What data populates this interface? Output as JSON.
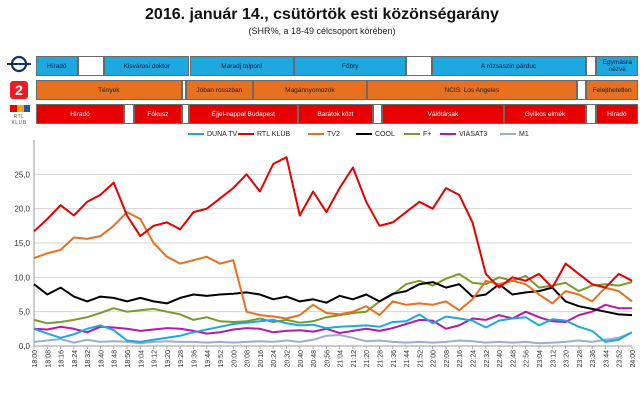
{
  "header": {
    "title": "2016. január 14., csütörtök esti közönségarány",
    "subtitle": "(SHR%, a 18-49 célcsoport körében)"
  },
  "channels": {
    "duna_logo": "DUNA TV logo",
    "tv2_logo": "TV2 logo",
    "rtl_logo": "RTL KLUB logo",
    "rtl_logo_text": "RTL KLUB"
  },
  "schedule": {
    "duna": [
      {
        "label": "Híradó",
        "start": 0,
        "end": 6.9
      },
      {
        "label": "",
        "start": 6.9,
        "end": 11.3,
        "gap": true
      },
      {
        "label": "Kisvárosi doktor",
        "start": 11.3,
        "end": 25.5
      },
      {
        "label": "Maradj talpon!",
        "start": 25.5,
        "end": 42.9
      },
      {
        "label": "Főbry",
        "start": 42.9,
        "end": 61.5
      },
      {
        "label": "",
        "start": 61.5,
        "end": 65.7,
        "gap": true
      },
      {
        "label": "A rózsaszín párduc",
        "start": 65.7,
        "end": 91.3
      },
      {
        "label": "",
        "start": 91.3,
        "end": 93.1,
        "gap": true
      },
      {
        "label": "Egymásra nézve",
        "start": 93.1,
        "end": 100
      }
    ],
    "tv2": [
      {
        "label": "Tények",
        "start": 0,
        "end": 24.2
      },
      {
        "label": "",
        "start": 24.2,
        "end": 24.9,
        "gap": true
      },
      {
        "label": "Jóban rosszban",
        "start": 24.9,
        "end": 36.0
      },
      {
        "label": "Magánnyomozók",
        "start": 36.0,
        "end": 55.0
      },
      {
        "label": "NCIS: Los Angeles",
        "start": 55.0,
        "end": 89.8
      },
      {
        "label": "",
        "start": 89.8,
        "end": 91.4,
        "gap": true
      },
      {
        "label": "Felejthetetlen",
        "start": 91.4,
        "end": 100
      }
    ],
    "rtl": [
      {
        "label": "Híradó",
        "start": 0,
        "end": 14.6
      },
      {
        "label": "",
        "start": 14.6,
        "end": 16.3,
        "gap": true
      },
      {
        "label": "Fókusz",
        "start": 16.3,
        "end": 24.2
      },
      {
        "label": "",
        "start": 24.2,
        "end": 25.4,
        "gap": true
      },
      {
        "label": "Éjjel-nappal Budapest",
        "start": 25.4,
        "end": 43.5
      },
      {
        "label": "Barátok közt",
        "start": 43.5,
        "end": 56.0
      },
      {
        "label": "",
        "start": 56.0,
        "end": 57.5,
        "gap": true
      },
      {
        "label": "Válótársak",
        "start": 57.5,
        "end": 77.7
      },
      {
        "label": "Gyilkos elmék",
        "start": 77.7,
        "end": 91.4
      },
      {
        "label": "",
        "start": 91.4,
        "end": 93.0,
        "gap": true
      },
      {
        "label": "Híradó",
        "start": 93.0,
        "end": 100
      }
    ]
  },
  "chart_data": {
    "type": "line",
    "ylim": [
      0,
      30
    ],
    "yticks": [
      "0,0",
      "5,0",
      "10,0",
      "15,0",
      "20,0",
      "25,0"
    ],
    "legend_position": "top",
    "grid": "horizontal",
    "x": [
      "18:00",
      "18:08",
      "18:16",
      "18:24",
      "18:32",
      "18:40",
      "18:48",
      "18:56",
      "19:04",
      "19:12",
      "19:20",
      "19:28",
      "19:36",
      "19:44",
      "19:52",
      "20:00",
      "20:08",
      "20:16",
      "20:24",
      "20:32",
      "20:40",
      "20:48",
      "20:56",
      "21:04",
      "21:12",
      "21:20",
      "21:28",
      "21:36",
      "21:44",
      "21:52",
      "22:00",
      "22:08",
      "22:16",
      "22:24",
      "22:32",
      "22:40",
      "22:48",
      "22:56",
      "23:04",
      "23:12",
      "23:20",
      "23:28",
      "23:36",
      "23:44",
      "23:52",
      "24:00"
    ],
    "series": [
      {
        "name": "DUNA TV",
        "color": "#1ea8e0",
        "values": [
          2.5,
          1.8,
          1.2,
          1.7,
          2.5,
          3.0,
          2.3,
          0.8,
          0.6,
          0.9,
          1.2,
          1.5,
          2.0,
          2.4,
          2.8,
          3.2,
          3.4,
          3.6,
          3.8,
          3.3,
          3.0,
          3.1,
          2.6,
          2.8,
          2.9,
          3.0,
          2.8,
          3.5,
          3.6,
          4.6,
          3.3,
          4.3,
          4.0,
          3.7,
          2.7,
          3.7,
          4.0,
          4.2,
          3.0,
          3.9,
          3.7,
          2.8,
          2.2,
          0.6,
          0.9,
          2.0
        ]
      },
      {
        "name": "RTL KLUB",
        "color": "#e60000",
        "values": [
          16.7,
          18.5,
          20.5,
          19.0,
          21.0,
          22.0,
          23.8,
          19.0,
          16.0,
          17.5,
          18.0,
          17.0,
          19.5,
          20.0,
          21.5,
          23.0,
          25.0,
          22.5,
          26.5,
          27.5,
          19.0,
          22.5,
          19.5,
          23.0,
          26.0,
          21.0,
          17.5,
          18.0,
          19.5,
          21.0,
          20.0,
          23.0,
          22.0,
          18.0,
          10.5,
          8.5,
          10.0,
          9.5,
          10.5,
          8.5,
          12.0,
          10.5,
          9.0,
          8.5,
          10.5,
          9.5
        ]
      },
      {
        "name": "TV2",
        "color": "#e8711f",
        "values": [
          12.8,
          13.5,
          14.0,
          15.8,
          15.6,
          16.0,
          17.5,
          19.5,
          18.5,
          15.0,
          13.0,
          12.0,
          12.5,
          13.0,
          12.0,
          12.5,
          5.0,
          4.5,
          4.3,
          4.0,
          4.5,
          6.0,
          4.8,
          4.6,
          5.0,
          5.8,
          4.5,
          6.5,
          6.0,
          6.2,
          6.0,
          6.5,
          5.2,
          6.8,
          9.5,
          9.0,
          9.5,
          9.0,
          7.5,
          6.2,
          8.0,
          7.5,
          6.5,
          8.5,
          8.0,
          6.5
        ]
      },
      {
        "name": "COOL",
        "color": "#000000",
        "values": [
          9.0,
          7.5,
          8.5,
          7.2,
          6.5,
          7.2,
          7.0,
          6.5,
          7.0,
          6.5,
          6.2,
          7.0,
          7.5,
          7.3,
          7.5,
          7.6,
          7.8,
          7.5,
          6.8,
          7.2,
          6.5,
          6.8,
          6.3,
          7.3,
          6.8,
          7.5,
          6.5,
          7.6,
          8.0,
          9.0,
          9.3,
          8.5,
          9.0,
          7.2,
          7.5,
          9.0,
          7.5,
          7.8,
          8.0,
          8.5,
          6.5,
          5.8,
          5.4,
          5.0,
          4.6,
          4.5
        ]
      },
      {
        "name": "F+",
        "color": "#7a9a2c",
        "values": [
          3.8,
          3.3,
          3.5,
          3.8,
          4.2,
          4.8,
          5.5,
          5.0,
          5.2,
          5.4,
          5.0,
          4.6,
          3.8,
          4.2,
          3.6,
          3.5,
          3.6,
          4.0,
          3.5,
          3.8,
          3.4,
          3.6,
          4.2,
          4.5,
          4.8,
          5.0,
          6.5,
          7.5,
          9.0,
          9.5,
          8.8,
          9.8,
          10.5,
          9.2,
          9.0,
          10.0,
          9.5,
          10.2,
          8.5,
          8.8,
          9.2,
          8.0,
          8.8,
          9.0,
          8.8,
          9.3
        ]
      },
      {
        "name": "VIASAT3",
        "color": "#b41aa7",
        "values": [
          2.5,
          2.4,
          2.8,
          2.5,
          2.0,
          2.8,
          2.7,
          2.5,
          2.2,
          2.4,
          2.6,
          2.5,
          2.2,
          1.8,
          2.0,
          2.4,
          2.6,
          2.5,
          2.0,
          2.2,
          2.3,
          2.1,
          2.5,
          1.9,
          2.2,
          2.5,
          2.2,
          2.6,
          3.2,
          3.8,
          3.7,
          2.5,
          3.0,
          4.0,
          3.8,
          4.5,
          4.0,
          5.0,
          4.2,
          3.6,
          3.5,
          4.5,
          5.0,
          6.0,
          5.5,
          5.5
        ]
      },
      {
        "name": "M1",
        "color": "#9aaed0",
        "values": [
          0.6,
          0.8,
          1.0,
          0.5,
          0.9,
          0.6,
          0.7,
          0.6,
          0.4,
          0.6,
          0.7,
          0.6,
          0.6,
          0.5,
          0.6,
          0.5,
          0.6,
          0.7,
          0.6,
          0.8,
          0.6,
          0.9,
          1.5,
          1.6,
          1.2,
          0.7,
          0.8,
          0.6,
          0.5,
          0.6,
          0.5,
          0.6,
          0.8,
          0.7,
          0.5,
          0.6,
          0.5,
          0.6,
          0.4,
          0.5,
          0.6,
          0.8,
          0.6,
          0.9,
          1.2,
          2.0
        ]
      }
    ]
  }
}
